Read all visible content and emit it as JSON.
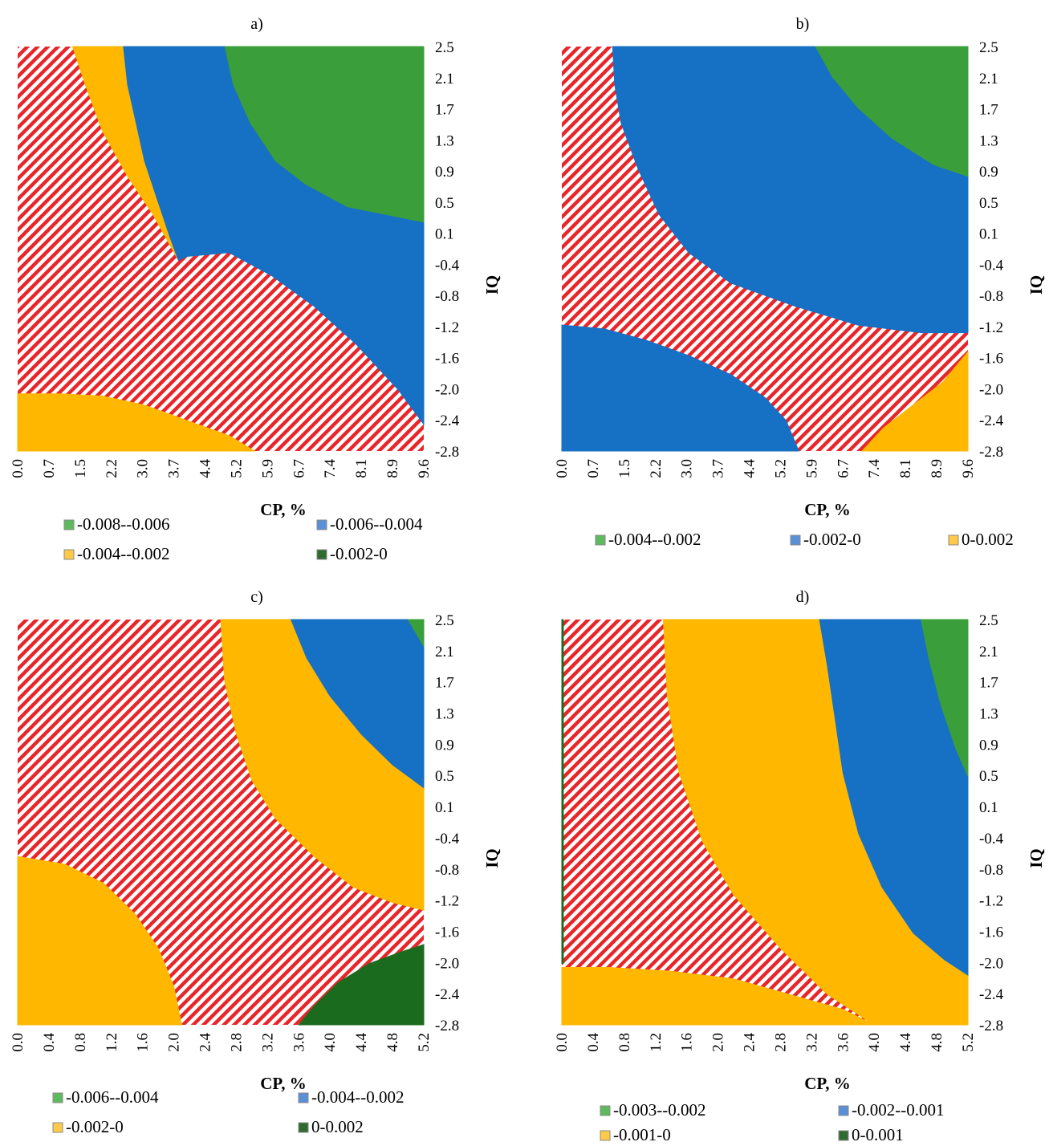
{
  "chart_data": [
    {
      "panel": "a)",
      "type": "contour",
      "xlabel": "CP, %",
      "ylabel": "IQ",
      "x_ticks": [
        "0.0",
        "0.7",
        "1.5",
        "2.2",
        "3.0",
        "3.7",
        "4.4",
        "5.2",
        "5.9",
        "6.7",
        "7.4",
        "8.1",
        "8.9",
        "9.6"
      ],
      "y_ticks": [
        "2.5",
        "2.1",
        "1.7",
        "1.3",
        "0.9",
        "0.5",
        "0.1",
        "-0.4",
        "-0.8",
        "-1.2",
        "-1.6",
        "-2.0",
        "-2.4",
        "-2.8"
      ],
      "xlim": [
        0.0,
        9.6
      ],
      "ylim": [
        -2.8,
        2.5
      ],
      "legend": [
        {
          "label": "-0.008--0.006",
          "color": "#5fb95f"
        },
        {
          "label": "-0.006--0.004",
          "color": "#5b8fd6"
        },
        {
          "label": "-0.004--0.002",
          "color": "#ffc94a"
        },
        {
          "label": "-0.002-0",
          "color": "#2f6b2f"
        }
      ],
      "regions": [
        {
          "fill": "#FFB700",
          "points": [
            [
              1.3,
              2.5
            ],
            [
              2.5,
              2.5
            ],
            [
              2.6,
              2.0
            ],
            [
              2.8,
              1.5
            ],
            [
              3.0,
              1.0
            ],
            [
              3.3,
              0.5
            ],
            [
              3.6,
              0.0
            ],
            [
              3.8,
              -0.3
            ],
            [
              3.2,
              0.3
            ],
            [
              2.6,
              0.8
            ],
            [
              2.0,
              1.4
            ],
            [
              1.6,
              2.0
            ]
          ]
        },
        {
          "fill": "#1670C4",
          "points": [
            [
              2.5,
              2.5
            ],
            [
              4.9,
              2.5
            ],
            [
              5.1,
              2.0
            ],
            [
              5.5,
              1.5
            ],
            [
              6.1,
              1.0
            ],
            [
              6.8,
              0.7
            ],
            [
              7.8,
              0.4
            ],
            [
              9.6,
              0.2
            ],
            [
              9.6,
              -2.45
            ],
            [
              9.0,
              -2.0
            ],
            [
              8.0,
              -1.4
            ],
            [
              7.0,
              -0.9
            ],
            [
              6.0,
              -0.5
            ],
            [
              5.0,
              -0.2
            ],
            [
              4.0,
              -0.25
            ],
            [
              3.8,
              -0.3
            ],
            [
              3.6,
              0.0
            ],
            [
              3.3,
              0.5
            ],
            [
              3.0,
              1.0
            ],
            [
              2.8,
              1.5
            ],
            [
              2.6,
              2.0
            ]
          ]
        },
        {
          "fill": "#3A9F3A",
          "points": [
            [
              4.9,
              2.5
            ],
            [
              9.6,
              2.5
            ],
            [
              9.6,
              0.2
            ],
            [
              7.8,
              0.4
            ],
            [
              6.8,
              0.7
            ],
            [
              6.1,
              1.0
            ],
            [
              5.5,
              1.5
            ],
            [
              5.1,
              2.0
            ]
          ]
        },
        {
          "fill": "#FFB700",
          "points": [
            [
              0.0,
              -2.8
            ],
            [
              0.0,
              -2.05
            ],
            [
              1.0,
              -2.05
            ],
            [
              2.0,
              -2.08
            ],
            [
              3.0,
              -2.2
            ],
            [
              4.0,
              -2.4
            ],
            [
              5.0,
              -2.6
            ],
            [
              5.6,
              -2.8
            ]
          ]
        }
      ]
    },
    {
      "panel": "b)",
      "type": "contour",
      "xlabel": "CP, %",
      "ylabel": "IQ",
      "x_ticks": [
        "0.0",
        "0.7",
        "1.5",
        "2.2",
        "3.0",
        "3.7",
        "4.4",
        "5.2",
        "5.9",
        "6.7",
        "7.4",
        "8.1",
        "8.9",
        "9.6"
      ],
      "y_ticks": [
        "2.5",
        "2.1",
        "1.7",
        "1.3",
        "0.9",
        "0.5",
        "0.1",
        "-0.4",
        "-0.8",
        "-1.2",
        "-1.6",
        "-2.0",
        "-2.4",
        "-2.8"
      ],
      "xlim": [
        0.0,
        9.6
      ],
      "ylim": [
        -2.8,
        2.5
      ],
      "legend": [
        {
          "label": "-0.004--0.002",
          "color": "#5fb95f"
        },
        {
          "label": "-0.002-0",
          "color": "#5b8fd6"
        },
        {
          "label": "0-0.002",
          "color": "#ffc94a"
        }
      ],
      "regions": [
        {
          "fill": "#1670C4",
          "points": [
            [
              1.2,
              2.5
            ],
            [
              9.6,
              2.5
            ],
            [
              9.6,
              -1.25
            ],
            [
              8.5,
              -1.25
            ],
            [
              7.0,
              -1.15
            ],
            [
              5.5,
              -0.9
            ],
            [
              4.0,
              -0.6
            ],
            [
              3.0,
              -0.2
            ],
            [
              2.3,
              0.3
            ],
            [
              1.8,
              0.9
            ],
            [
              1.4,
              1.5
            ],
            [
              1.25,
              2.0
            ]
          ]
        },
        {
          "fill": "#3A9F3A",
          "points": [
            [
              6.0,
              2.5
            ],
            [
              9.6,
              2.5
            ],
            [
              9.6,
              0.8
            ],
            [
              8.8,
              0.95
            ],
            [
              7.8,
              1.3
            ],
            [
              7.0,
              1.7
            ],
            [
              6.4,
              2.1
            ]
          ]
        },
        {
          "fill": "#1670C4",
          "points": [
            [
              0.0,
              -2.8
            ],
            [
              0.0,
              -1.15
            ],
            [
              1.0,
              -1.2
            ],
            [
              2.0,
              -1.35
            ],
            [
              3.0,
              -1.55
            ],
            [
              4.0,
              -1.8
            ],
            [
              4.8,
              -2.1
            ],
            [
              5.3,
              -2.4
            ],
            [
              5.6,
              -2.8
            ]
          ]
        },
        {
          "fill": "#FFB700",
          "points": [
            [
              7.1,
              -2.8
            ],
            [
              7.6,
              -2.5
            ],
            [
              8.3,
              -2.2
            ],
            [
              9.0,
              -1.9
            ],
            [
              9.6,
              -1.5
            ],
            [
              9.6,
              -2.8
            ]
          ]
        }
      ]
    },
    {
      "panel": "c)",
      "type": "contour",
      "xlabel": "CP, %",
      "ylabel": "IQ",
      "x_ticks": [
        "0.0",
        "0.4",
        "0.8",
        "1.2",
        "1.6",
        "2.0",
        "2.4",
        "2.8",
        "3.2",
        "3.6",
        "4.0",
        "4.4",
        "4.8",
        "5.2"
      ],
      "y_ticks": [
        "2.5",
        "2.1",
        "1.7",
        "1.3",
        "0.9",
        "0.5",
        "0.1",
        "-0.4",
        "-0.8",
        "-1.2",
        "-1.6",
        "-2.0",
        "-2.4",
        "-2.8"
      ],
      "xlim": [
        0.0,
        5.2
      ],
      "ylim": [
        -2.8,
        2.5
      ],
      "legend": [
        {
          "label": "-0.006--0.004",
          "color": "#5fb95f"
        },
        {
          "label": "-0.004--0.002",
          "color": "#5b8fd6"
        },
        {
          "label": "-0.002-0",
          "color": "#ffc94a"
        },
        {
          "label": "0-0.002",
          "color": "#2f6b2f"
        }
      ],
      "regions": [
        {
          "fill": "#FFB700",
          "points": [
            [
              2.6,
              2.5
            ],
            [
              5.2,
              2.5
            ],
            [
              5.2,
              -1.3
            ],
            [
              4.8,
              -1.2
            ],
            [
              4.3,
              -1.0
            ],
            [
              3.8,
              -0.6
            ],
            [
              3.3,
              -0.1
            ],
            [
              3.0,
              0.4
            ],
            [
              2.8,
              1.0
            ],
            [
              2.65,
              1.7
            ]
          ]
        },
        {
          "fill": "#1670C4",
          "points": [
            [
              3.5,
              2.5
            ],
            [
              5.2,
              2.5
            ],
            [
              5.2,
              0.3
            ],
            [
              4.8,
              0.6
            ],
            [
              4.4,
              1.0
            ],
            [
              4.0,
              1.5
            ],
            [
              3.7,
              2.0
            ]
          ]
        },
        {
          "fill": "#3A9F3A",
          "points": [
            [
              5.0,
              2.5
            ],
            [
              5.2,
              2.5
            ],
            [
              5.2,
              2.15
            ]
          ]
        },
        {
          "fill": "#FFB700",
          "points": [
            [
              0.0,
              -2.8
            ],
            [
              0.0,
              -0.6
            ],
            [
              0.6,
              -0.7
            ],
            [
              1.1,
              -0.95
            ],
            [
              1.5,
              -1.35
            ],
            [
              1.8,
              -1.8
            ],
            [
              2.0,
              -2.3
            ],
            [
              2.1,
              -2.8
            ]
          ]
        },
        {
          "fill": "#1B6B1F",
          "points": [
            [
              3.6,
              -2.8
            ],
            [
              3.8,
              -2.55
            ],
            [
              4.1,
              -2.25
            ],
            [
              4.5,
              -2.0
            ],
            [
              4.9,
              -1.85
            ],
            [
              5.2,
              -1.75
            ],
            [
              5.2,
              -2.8
            ]
          ]
        }
      ]
    },
    {
      "panel": "d)",
      "type": "contour",
      "xlabel": "CP, %",
      "ylabel": "IQ",
      "x_ticks": [
        "0.0",
        "0.4",
        "0.8",
        "1.2",
        "1.6",
        "2.0",
        "2.4",
        "2.8",
        "3.2",
        "3.6",
        "4.0",
        "4.4",
        "4.8",
        "5.2"
      ],
      "y_ticks": [
        "2.5",
        "2.1",
        "1.7",
        "1.3",
        "0.9",
        "0.5",
        "0.1",
        "-0.4",
        "-0.8",
        "-1.2",
        "-1.6",
        "-2.0",
        "-2.4",
        "-2.8"
      ],
      "xlim": [
        0.0,
        5.2
      ],
      "ylim": [
        -2.8,
        2.5
      ],
      "legend": [
        {
          "label": "-0.003--0.002",
          "color": "#5fb95f"
        },
        {
          "label": "-0.002--0.001",
          "color": "#5b8fd6"
        },
        {
          "label": "-0.001-0",
          "color": "#ffc94a"
        },
        {
          "label": "0-0.001",
          "color": "#2f6b2f"
        }
      ],
      "regions": [
        {
          "fill": "#FFB700",
          "points": [
            [
              1.3,
              2.5
            ],
            [
              3.3,
              2.5
            ],
            [
              3.4,
              1.9
            ],
            [
              3.5,
              1.2
            ],
            [
              3.6,
              0.5
            ],
            [
              3.8,
              -0.3
            ],
            [
              4.1,
              -1.0
            ],
            [
              4.5,
              -1.6
            ],
            [
              4.9,
              -1.95
            ],
            [
              5.2,
              -2.15
            ],
            [
              5.2,
              -2.8
            ],
            [
              4.0,
              -2.8
            ],
            [
              3.4,
              -2.4
            ],
            [
              2.8,
              -1.8
            ],
            [
              2.2,
              -1.1
            ],
            [
              1.8,
              -0.4
            ],
            [
              1.5,
              0.5
            ],
            [
              1.35,
              1.5
            ]
          ]
        },
        {
          "fill": "#1670C4",
          "points": [
            [
              3.3,
              2.5
            ],
            [
              4.6,
              2.5
            ],
            [
              4.7,
              2.0
            ],
            [
              4.85,
              1.4
            ],
            [
              5.05,
              0.8
            ],
            [
              5.2,
              0.45
            ],
            [
              5.2,
              -2.15
            ],
            [
              4.9,
              -1.95
            ],
            [
              4.5,
              -1.6
            ],
            [
              4.1,
              -1.0
            ],
            [
              3.8,
              -0.3
            ],
            [
              3.6,
              0.5
            ],
            [
              3.5,
              1.2
            ],
            [
              3.4,
              1.9
            ]
          ]
        },
        {
          "fill": "#3A9F3A",
          "points": [
            [
              4.6,
              2.5
            ],
            [
              5.2,
              2.5
            ],
            [
              5.2,
              0.45
            ],
            [
              5.05,
              0.8
            ],
            [
              4.85,
              1.4
            ],
            [
              4.7,
              2.0
            ]
          ]
        },
        {
          "fill": "#FFB700",
          "points": [
            [
              0.0,
              -2.8
            ],
            [
              0.0,
              -2.05
            ],
            [
              0.6,
              -2.05
            ],
            [
              1.4,
              -2.1
            ],
            [
              2.2,
              -2.2
            ],
            [
              2.9,
              -2.4
            ],
            [
              3.6,
              -2.6
            ],
            [
              4.0,
              -2.8
            ]
          ]
        },
        {
          "fill": "#1B6B1F",
          "points": [
            [
              0.0,
              2.5
            ],
            [
              0.02,
              2.5
            ],
            [
              0.02,
              -2.0
            ],
            [
              0.0,
              -2.0
            ]
          ]
        }
      ]
    }
  ]
}
